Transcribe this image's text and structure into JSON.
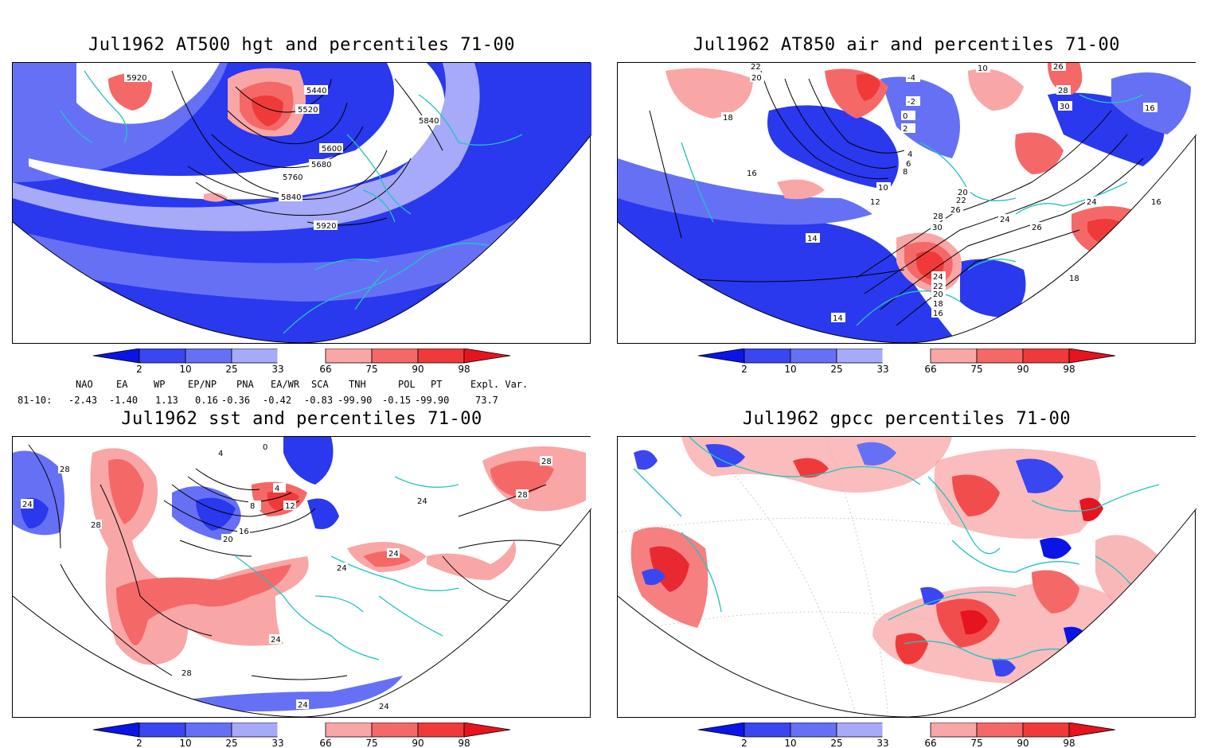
{
  "panels": [
    {
      "title": "Jul1962 AT500 hgt and percentiles 71-00",
      "contour_labels": [
        "5920",
        "5440",
        "5520",
        "5600",
        "5680",
        "5760",
        "5840",
        "5840",
        "5920"
      ]
    },
    {
      "title": "Jul1962 AT850 air and percentiles 71-00",
      "contour_labels": [
        "22",
        "20",
        "18",
        "16",
        "12",
        "10",
        "8",
        "6",
        "4",
        "2",
        "0",
        "-2",
        "-4",
        "10",
        "26",
        "28",
        "30",
        "16",
        "20",
        "22",
        "24",
        "26",
        "28",
        "30",
        "24",
        "22",
        "20",
        "18",
        "16",
        "14",
        "14",
        "18",
        "16",
        "24",
        "26"
      ]
    },
    {
      "title": "Jul1962 sst and percentiles 71-00",
      "contour_labels": [
        "28",
        "24",
        "28",
        "4",
        "8",
        "12",
        "16",
        "20",
        "24",
        "24",
        "24",
        "24",
        "28",
        "28",
        "28",
        "24",
        "24",
        "0",
        "4"
      ]
    },
    {
      "title": "Jul1962 gpcc percentiles 71-00",
      "contour_labels": []
    }
  ],
  "colorbar": {
    "ticks": [
      "2",
      "10",
      "25",
      "33",
      "66",
      "75",
      "90",
      "98"
    ],
    "colors": [
      "#0a14e6",
      "#3a46f0",
      "#6670f5",
      "#a6aaf8",
      "#ffffff",
      "#f8a6a6",
      "#f56868",
      "#f03a3a",
      "#e6141e"
    ]
  },
  "indices": {
    "row_label": "81-10:",
    "names": [
      "NAO",
      "EA",
      "WP",
      "EP/NP",
      "PNA",
      "EA/WR",
      "SCA",
      "TNH",
      "POL",
      "PT",
      "Expl. Var."
    ],
    "values": [
      "-2.43",
      "-1.40",
      "1.13",
      "0.16",
      "-0.36",
      "-0.42",
      "-0.83",
      "-99.90",
      "-0.15",
      "-99.90",
      "73.7"
    ]
  },
  "map_colors": {
    "coast": "#22c4c4",
    "contour": "#000000",
    "grid": "#9a9a9a"
  }
}
